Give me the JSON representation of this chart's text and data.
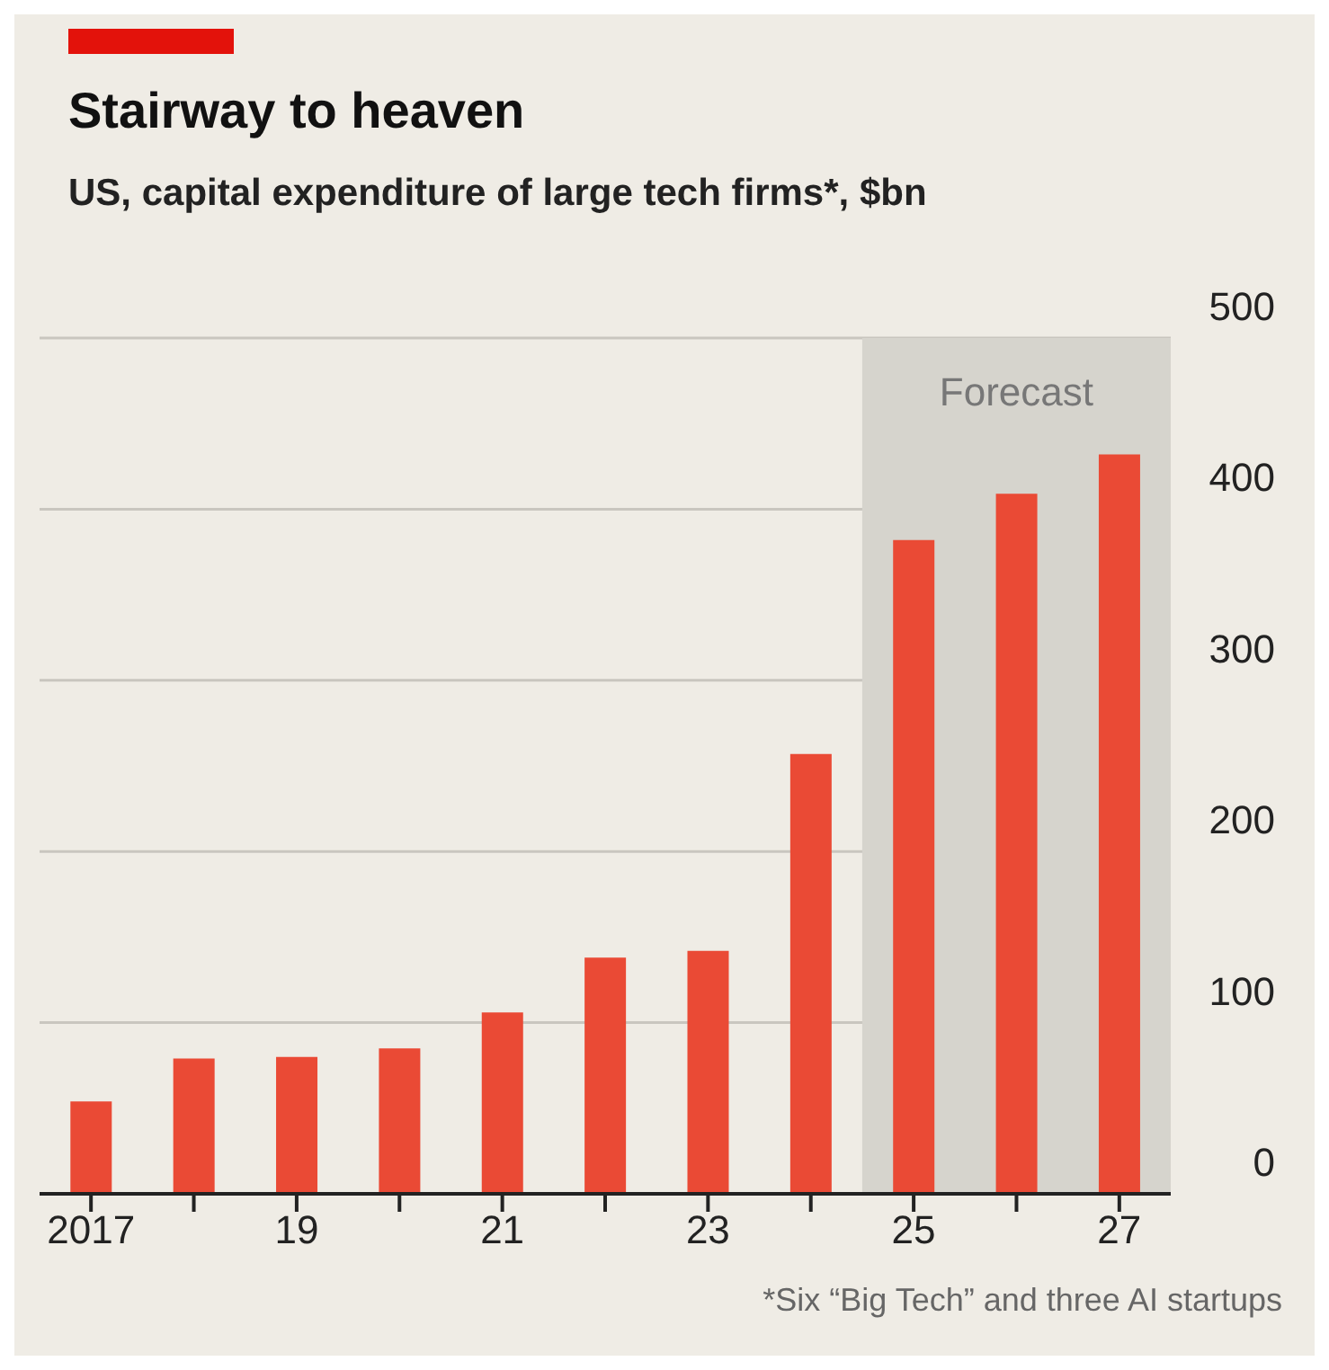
{
  "chart_data": {
    "type": "bar",
    "title": "Stairway to heaven",
    "subtitle": "US, capital expenditure of large tech firms*, $bn",
    "categories": [
      "2017",
      null,
      "19",
      null,
      "21",
      null,
      "23",
      null,
      "25",
      null,
      "27"
    ],
    "values": [
      54,
      79,
      80,
      85,
      106,
      138,
      142,
      257,
      382,
      409,
      432
    ],
    "color": "#ea4a35",
    "ylim": [
      0,
      500
    ],
    "yticks": [
      0,
      100,
      200,
      300,
      400,
      500
    ],
    "grid": "y",
    "bands": [
      {
        "axis": "x",
        "from": "25",
        "to": "27",
        "label": "Forecast",
        "color": "#d6d4cd"
      }
    ],
    "annotations": [
      "*Six “Big Tech” and three AI startups"
    ]
  }
}
